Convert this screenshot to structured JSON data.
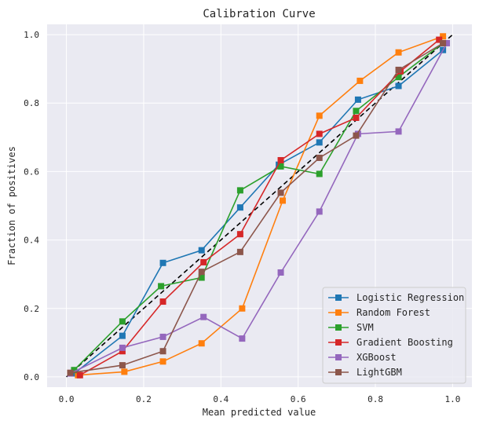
{
  "chart_data": {
    "type": "line",
    "title": "Calibration Curve",
    "xlabel": "Mean predicted value",
    "ylabel": "Fraction of positives",
    "xlim": [
      -0.05,
      1.05
    ],
    "ylim": [
      -0.03,
      1.03
    ],
    "xticks": [
      0.0,
      0.2,
      0.4,
      0.6,
      0.8,
      1.0
    ],
    "yticks": [
      0.0,
      0.2,
      0.4,
      0.6,
      0.8,
      1.0
    ],
    "xtick_labels": [
      "0.0",
      "0.2",
      "0.4",
      "0.6",
      "0.8",
      "1.0"
    ],
    "ytick_labels": [
      "0.0",
      "0.2",
      "0.4",
      "0.6",
      "0.8",
      "1.0"
    ],
    "grid": true,
    "legend_position": "lower-right",
    "reference_line": {
      "x": [
        0,
        1
      ],
      "y": [
        0,
        1
      ],
      "color": "#000000",
      "style": "dashed"
    },
    "series": [
      {
        "name": "Logistic Regression",
        "color": "#1f77b4",
        "x": [
          0.02,
          0.145,
          0.25,
          0.35,
          0.45,
          0.55,
          0.655,
          0.755,
          0.86,
          0.975
        ],
        "y": [
          0.01,
          0.12,
          0.333,
          0.37,
          0.495,
          0.62,
          0.685,
          0.81,
          0.85,
          0.955
        ]
      },
      {
        "name": "Random Forest",
        "color": "#ff7f0e",
        "x": [
          0.03,
          0.15,
          0.25,
          0.35,
          0.455,
          0.56,
          0.655,
          0.76,
          0.86,
          0.975
        ],
        "y": [
          0.005,
          0.015,
          0.045,
          0.098,
          0.2,
          0.515,
          0.763,
          0.865,
          0.948,
          0.995
        ]
      },
      {
        "name": "SVM",
        "color": "#2ca02c",
        "x": [
          0.02,
          0.145,
          0.245,
          0.35,
          0.45,
          0.555,
          0.655,
          0.75,
          0.86,
          0.975
        ],
        "y": [
          0.02,
          0.162,
          0.265,
          0.29,
          0.545,
          0.615,
          0.593,
          0.777,
          0.876,
          0.975
        ]
      },
      {
        "name": "Gradient Boosting",
        "color": "#d62728",
        "x": [
          0.035,
          0.145,
          0.25,
          0.355,
          0.45,
          0.555,
          0.655,
          0.75,
          0.865,
          0.965
        ],
        "y": [
          0.005,
          0.075,
          0.22,
          0.335,
          0.417,
          0.633,
          0.71,
          0.757,
          0.893,
          0.985
        ]
      },
      {
        "name": "XGBoost",
        "color": "#9467bd",
        "x": [
          0.01,
          0.145,
          0.25,
          0.355,
          0.455,
          0.555,
          0.655,
          0.755,
          0.86,
          0.985
        ],
        "y": [
          0.01,
          0.085,
          0.117,
          0.175,
          0.112,
          0.305,
          0.483,
          0.71,
          0.717,
          0.975
        ]
      },
      {
        "name": "LightGBM",
        "color": "#8c564b",
        "x": [
          0.01,
          0.145,
          0.25,
          0.35,
          0.45,
          0.555,
          0.655,
          0.75,
          0.86,
          0.975
        ],
        "y": [
          0.012,
          0.034,
          0.075,
          0.307,
          0.365,
          0.538,
          0.64,
          0.705,
          0.897,
          0.975
        ]
      }
    ]
  }
}
